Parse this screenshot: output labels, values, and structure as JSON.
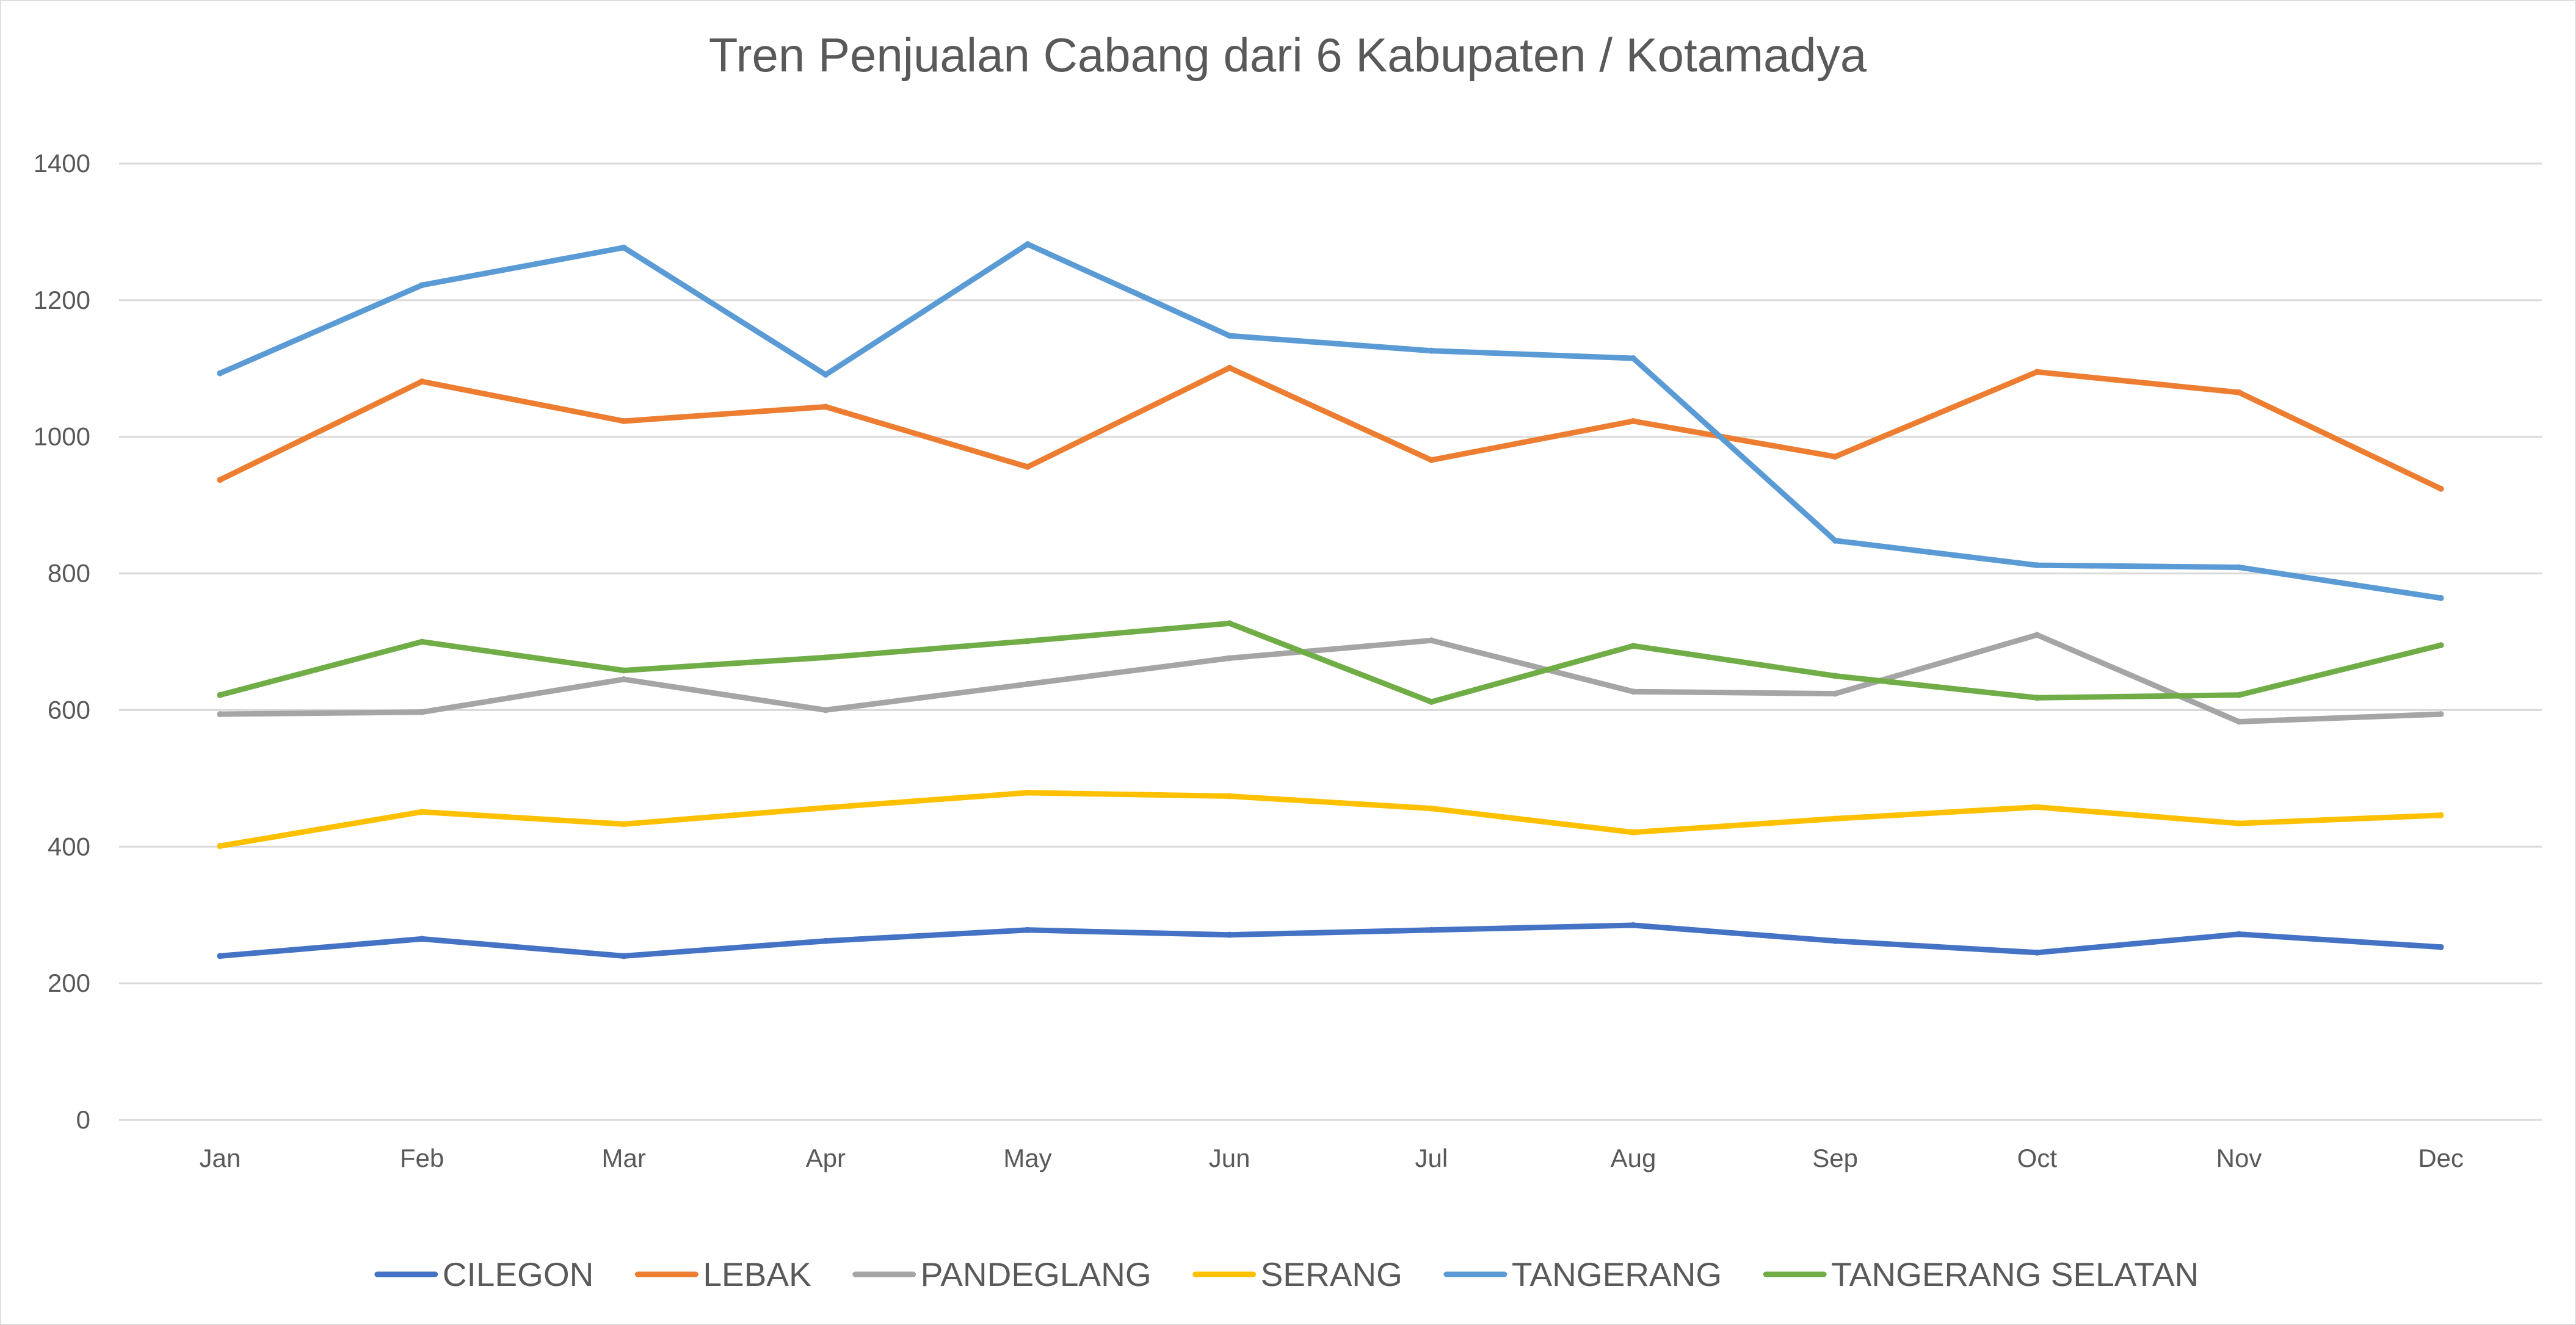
{
  "chart_data": {
    "type": "line",
    "title": "Tren Penjualan Cabang dari 6 Kabupaten / Kotamadya",
    "xlabel": "",
    "ylabel": "",
    "categories": [
      "Jan",
      "Feb",
      "Mar",
      "Apr",
      "May",
      "Jun",
      "Jul",
      "Aug",
      "Sep",
      "Oct",
      "Nov",
      "Dec"
    ],
    "ylim": [
      0,
      1400
    ],
    "yticks": [
      0,
      200,
      400,
      600,
      800,
      1000,
      1200,
      1400
    ],
    "grid": true,
    "legend": "bottom",
    "series": [
      {
        "name": "CILEGON",
        "color": "#4472C4",
        "values": [
          240,
          265,
          240,
          262,
          278,
          271,
          278,
          285,
          262,
          245,
          272,
          253
        ]
      },
      {
        "name": "LEBAK",
        "color": "#ED7D31",
        "values": [
          937,
          1081,
          1023,
          1044,
          956,
          1101,
          966,
          1023,
          971,
          1095,
          1065,
          924
        ]
      },
      {
        "name": "PANDEGLANG",
        "color": "#A5A5A5",
        "values": [
          594,
          597,
          645,
          600,
          638,
          676,
          702,
          627,
          624,
          710,
          583,
          594
        ]
      },
      {
        "name": "SERANG",
        "color": "#FFC000",
        "values": [
          401,
          451,
          433,
          457,
          479,
          474,
          456,
          421,
          441,
          458,
          434,
          446
        ]
      },
      {
        "name": "TANGERANG",
        "color": "#5B9BD5",
        "values": [
          1093,
          1222,
          1277,
          1091,
          1282,
          1148,
          1126,
          1115,
          848,
          812,
          809,
          764
        ]
      },
      {
        "name": "TANGERANG SELATAN",
        "color": "#70AD47",
        "values": [
          622,
          700,
          658,
          677,
          701,
          727,
          612,
          694,
          650,
          618,
          622,
          695
        ]
      }
    ]
  }
}
